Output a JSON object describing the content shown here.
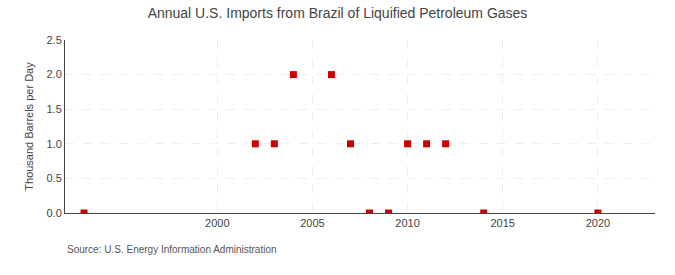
{
  "chart_data": {
    "type": "scatter",
    "title": "Annual U.S. Imports from Brazil of Liquified Petroleum Gases",
    "y_label": "Thousand Barrels per Day",
    "annotations": [
      "Source: U.S. Energy Information Administration"
    ],
    "x": [
      1993,
      2002,
      2003,
      2004,
      2006,
      2007,
      2008,
      2009,
      2010,
      2011,
      2012,
      2014,
      2020
    ],
    "values": [
      0.0,
      1.0,
      1.0,
      2.0,
      2.0,
      1.0,
      0.0,
      0.0,
      1.0,
      1.0,
      1.0,
      0.0,
      0.0
    ],
    "color": "#cc0000",
    "marker": "square",
    "xlim": [
      1992,
      2023
    ],
    "ylim": [
      0.0,
      2.5
    ],
    "xticks": [
      2000,
      2005,
      2010,
      2015,
      2020
    ],
    "yticks": [
      {
        "value": 0.0,
        "label": "0.0"
      },
      0.5,
      {
        "value": 1.0,
        "label": "1.0"
      },
      1.5,
      {
        "value": 2.0,
        "label": "2.0"
      },
      2.5
    ],
    "grid": true
  }
}
